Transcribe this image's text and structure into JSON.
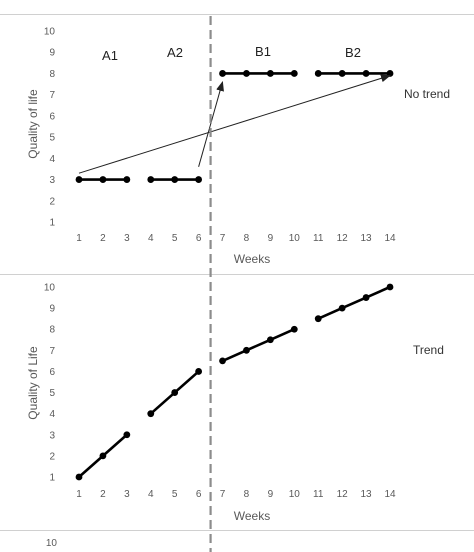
{
  "chart_data": [
    {
      "type": "line",
      "xlabel": "Weeks",
      "ylabel": "Quality of life",
      "ylim": [
        1,
        10
      ],
      "xlim": [
        1,
        14
      ],
      "x_ticks": [
        "1",
        "2",
        "3",
        "4",
        "5",
        "6",
        "7",
        "8",
        "9",
        "10",
        "11",
        "12",
        "13",
        "14"
      ],
      "y_ticks": [
        "1",
        "2",
        "3",
        "4",
        "5",
        "6",
        "7",
        "8",
        "9",
        "10"
      ],
      "phase_labels": [
        "A1",
        "A2",
        "B1",
        "B2"
      ],
      "annotation": "No trend",
      "phase_change_after_week": 6,
      "series": [
        {
          "x": [
            1,
            2,
            3
          ],
          "values": [
            3,
            3,
            3
          ]
        },
        {
          "x": [
            4,
            5,
            6
          ],
          "values": [
            3,
            3,
            3
          ]
        },
        {
          "x": [
            7,
            8,
            9,
            10
          ],
          "values": [
            8,
            8,
            8,
            8
          ]
        },
        {
          "x": [
            11,
            12,
            13,
            14
          ],
          "values": [
            8,
            8,
            8,
            8
          ]
        }
      ],
      "arrows": [
        {
          "from": [
            1,
            3.3
          ],
          "to": [
            14,
            7.9
          ]
        },
        {
          "from": [
            6,
            3.6
          ],
          "to": [
            7,
            7.6
          ]
        }
      ],
      "grid": false
    },
    {
      "type": "line",
      "xlabel": "Weeks",
      "ylabel": "Quality of Life",
      "ylim": [
        1,
        10
      ],
      "xlim": [
        1,
        14
      ],
      "x_ticks": [
        "1",
        "2",
        "3",
        "4",
        "5",
        "6",
        "7",
        "8",
        "9",
        "10",
        "11",
        "12",
        "13",
        "14"
      ],
      "y_ticks": [
        "1",
        "2",
        "3",
        "4",
        "5",
        "6",
        "7",
        "8",
        "9",
        "10"
      ],
      "annotation": "Trend",
      "phase_change_after_week": 6,
      "series": [
        {
          "x": [
            1,
            2,
            3
          ],
          "values": [
            1,
            2,
            3
          ]
        },
        {
          "x": [
            4,
            5,
            6
          ],
          "values": [
            4,
            5,
            6
          ]
        },
        {
          "x": [
            7,
            8,
            9,
            10
          ],
          "values": [
            6.5,
            7,
            7.5,
            8
          ]
        },
        {
          "x": [
            11,
            12,
            13,
            14
          ],
          "values": [
            8.5,
            9,
            9.5,
            10
          ]
        }
      ],
      "grid": false
    }
  ],
  "partial_tick": "10"
}
